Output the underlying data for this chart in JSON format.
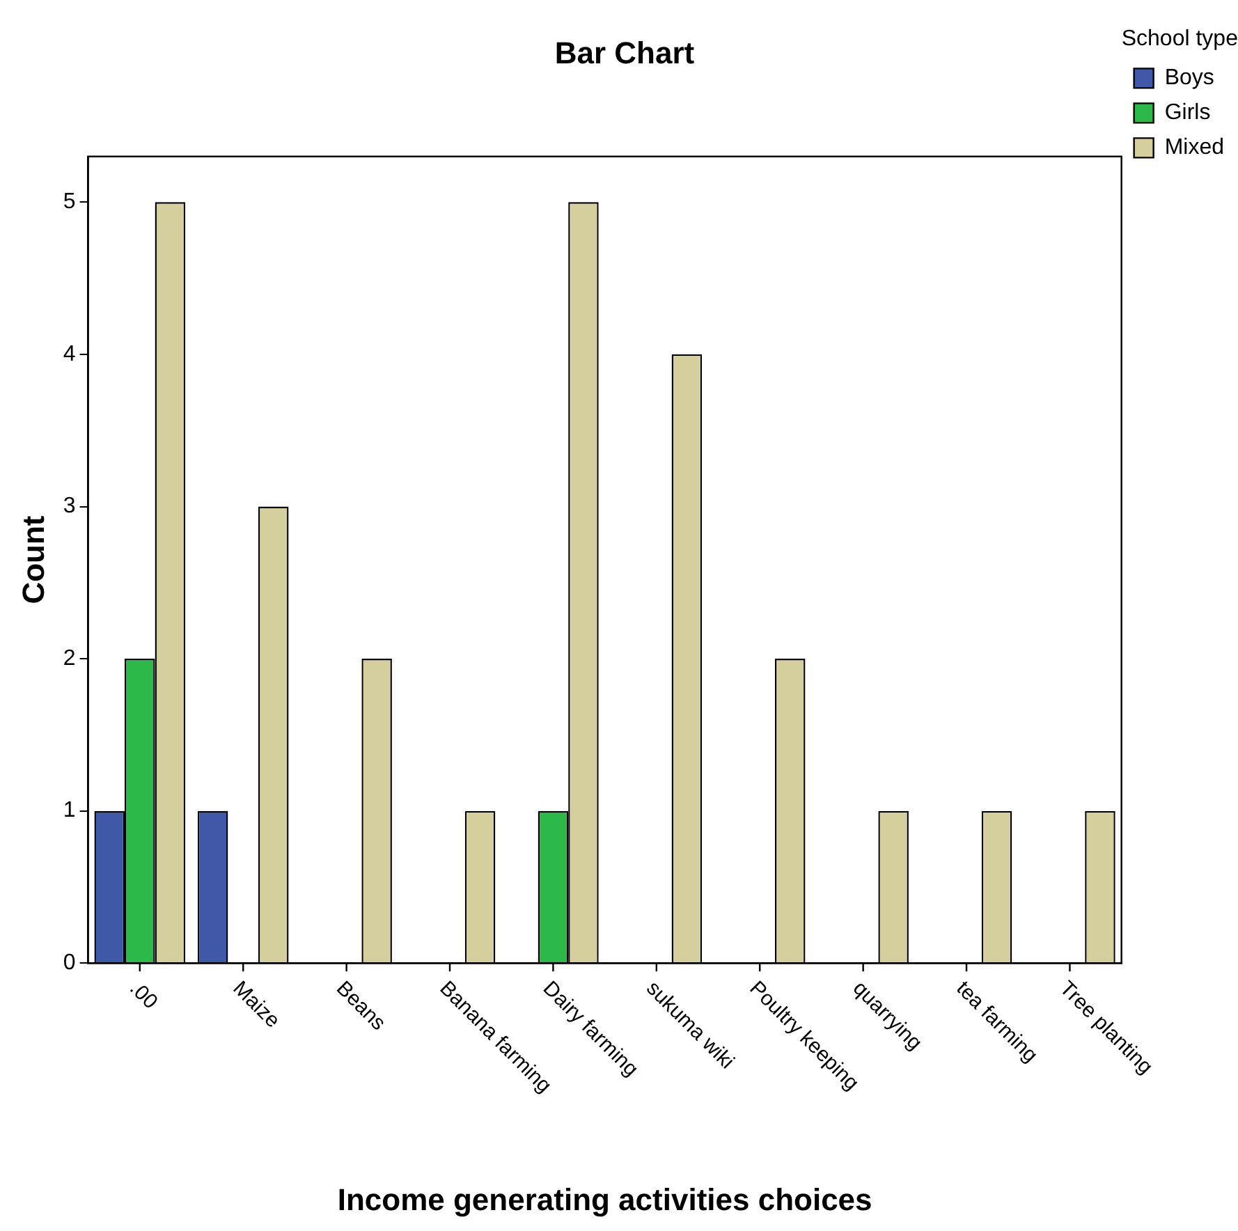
{
  "chart_data": {
    "type": "bar",
    "title": "Bar Chart",
    "xlabel": "Income generating activities choices",
    "ylabel": "Count",
    "legend_title": "School type",
    "categories": [
      ".00",
      "Maize",
      "Beans",
      "Banana farming",
      "Dairy farming",
      "sukuma wiki",
      "Poultry keeping",
      "quarrying",
      "tea farming",
      "Tree planting"
    ],
    "series": [
      {
        "name": "Boys",
        "color": "#3f59a8",
        "values": [
          1,
          1,
          null,
          null,
          null,
          null,
          null,
          null,
          null,
          null
        ]
      },
      {
        "name": "Girls",
        "color": "#2db84a",
        "values": [
          2,
          null,
          null,
          null,
          1,
          null,
          null,
          null,
          null,
          null
        ]
      },
      {
        "name": "Mixed",
        "color": "#d5cf9e",
        "values": [
          5,
          3,
          2,
          1,
          5,
          4,
          2,
          1,
          1,
          1
        ]
      }
    ],
    "ylim": [
      0,
      5.3
    ],
    "yticks": [
      0,
      1,
      2,
      3,
      4,
      5
    ],
    "grid": false,
    "legend": "top right"
  }
}
